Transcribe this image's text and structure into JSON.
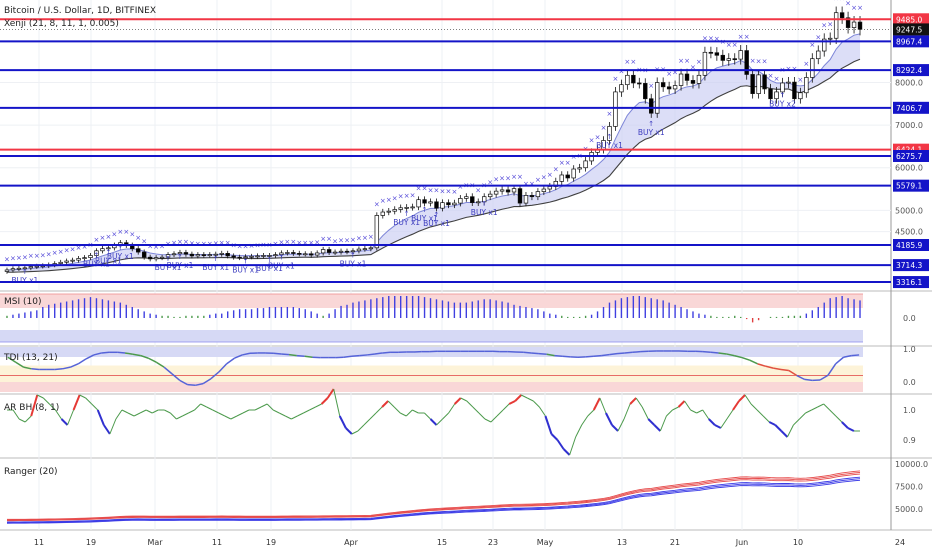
{
  "header": {
    "symbol_title": "Bitcoin / U.S. Dollar, 1D, BITFINEX",
    "indicator_label": "Xenji (21, 8, 11, 1, 0.005)"
  },
  "colors": {
    "red_line": "#f23645",
    "blue_line": "#1414c8",
    "candle_up": "#ffffff",
    "candle_down": "#000000",
    "x_marker": "#4a3fd6",
    "buy_label": "#3d3dbf",
    "band_fill": "#c9cdf3",
    "band_line": "#404040",
    "msi_bar": "#3f3fe0",
    "tdi_line": "#5563d8",
    "tdi_green": "#4c9a4c",
    "tdi_red": "#e05040",
    "ar_line": "#4c9a4c",
    "ar_red": "#e53935",
    "ar_blue": "#3030d0",
    "ranger_red": "#e64a4a",
    "ranger_blue": "#3a3ae6"
  },
  "chart_data": [
    {
      "type": "candlestick",
      "title": "Bitcoin / U.S. Dollar, 1D, BITFINEX",
      "overlay": "Xenji (21, 8, 11, 1, 0.005)",
      "x_ticks": [
        "11",
        "19",
        "Mar",
        "11",
        "19",
        "Apr",
        "15",
        "23",
        "May",
        "13",
        "21",
        "Jun",
        "10",
        "24"
      ],
      "y_ticks": [
        4500,
        5000,
        6000,
        7000,
        8000
      ],
      "y_tick_labels": [
        "4500.0",
        "5000.0",
        "6000.0",
        "7000.0",
        "8000.0"
      ],
      "ylim": [
        3200,
        9750
      ],
      "red_levels": [
        9485.0,
        6424.1
      ],
      "blue_levels": [
        8967.4,
        8292.4,
        7406.7,
        6275.7,
        5579.1,
        4185.9,
        3714.3,
        3316.1
      ],
      "level_labels": [
        "9485.0",
        "8967.4",
        "8292.4",
        "7406.7",
        "6424.1",
        "6275.7",
        "5579.1",
        "4185.9",
        "3714.3",
        "3316.1"
      ],
      "last_price_label": "9247.5",
      "last_price": 9247.5,
      "close_series": [
        3600,
        3630,
        3640,
        3650,
        3680,
        3690,
        3700,
        3720,
        3750,
        3780,
        3810,
        3830,
        3870,
        3890,
        3940,
        4050,
        4100,
        4120,
        4180,
        4240,
        4180,
        4100,
        4020,
        3900,
        3860,
        3890,
        3900,
        3960,
        3980,
        4010,
        3970,
        3930,
        3960,
        3950,
        3960,
        3970,
        3990,
        3930,
        3900,
        3890,
        3910,
        3920,
        3930,
        3940,
        3940,
        3960,
        4000,
        4010,
        3990,
        3980,
        3980,
        3950,
        4000,
        4080,
        4010,
        4020,
        4040,
        4030,
        4050,
        4090,
        4100,
        4120,
        4880,
        4960,
        4980,
        5020,
        5060,
        5070,
        5080,
        5250,
        5170,
        5200,
        5050,
        5180,
        5130,
        5170,
        5280,
        5320,
        5180,
        5200,
        5320,
        5380,
        5450,
        5480,
        5430,
        5510,
        5170,
        5350,
        5320,
        5440,
        5500,
        5560,
        5680,
        5830,
        5760,
        5970,
        6000,
        6160,
        6360,
        6430,
        6640,
        6970,
        7780,
        7950,
        8170,
        7990,
        7980,
        7620,
        7280,
        8000,
        7900,
        7850,
        7930,
        8200,
        8050,
        7980,
        8170,
        8710,
        8700,
        8640,
        8520,
        8560,
        8550,
        8750,
        8190,
        7740,
        8180,
        7850,
        7620,
        7780,
        7990,
        8010,
        7620,
        7760,
        8120,
        8560,
        8740,
        9020,
        9040,
        9640,
        9520,
        9290,
        9420,
        9247.5
      ],
      "buy_signals": [
        "BUY x1",
        "BUY x1",
        "BUY x1",
        "BUY x1",
        "BUY x1",
        "BUY x1",
        "BUY x1",
        "BUY x1",
        "BUY x1",
        "BUY x1",
        "BUY x1",
        "BUY x1",
        "BUY x1",
        "BUY x1",
        "BUY x1",
        "BUY x1",
        "BUY x1",
        "BUY x2"
      ]
    },
    {
      "type": "bar",
      "title": "MSI (10)",
      "y_ticks": [
        0.0
      ],
      "y_tick_labels": [
        "0.0"
      ],
      "values": [
        0.1,
        0.15,
        0.2,
        0.25,
        0.3,
        0.35,
        0.5,
        0.6,
        0.65,
        0.7,
        0.75,
        0.8,
        0.85,
        0.9,
        0.95,
        0.9,
        0.85,
        0.8,
        0.75,
        0.7,
        0.6,
        0.5,
        0.4,
        0.3,
        0.2,
        0.15,
        0.1,
        0.1,
        0.05,
        0.05,
        0.1,
        0.1,
        0.1,
        0.1,
        0.15,
        0.2,
        0.2,
        0.3,
        0.35,
        0.4,
        0.4,
        0.4,
        0.45,
        0.45,
        0.5,
        0.5,
        0.5,
        0.5,
        0.5,
        0.45,
        0.4,
        0.3,
        0.2,
        0.1,
        0.2,
        0.4,
        0.55,
        0.6,
        0.7,
        0.75,
        0.8,
        0.85,
        0.9,
        0.95,
        1.0,
        1.0,
        1.0,
        1.0,
        1.0,
        1.0,
        0.95,
        0.9,
        0.85,
        0.8,
        0.75,
        0.7,
        0.7,
        0.7,
        0.75,
        0.8,
        0.85,
        0.85,
        0.8,
        0.75,
        0.7,
        0.6,
        0.55,
        0.5,
        0.45,
        0.4,
        0.3,
        0.2,
        0.15,
        0.1,
        0.05,
        0.05,
        0.05,
        0.1,
        0.15,
        0.3,
        0.5,
        0.7,
        0.8,
        0.9,
        0.95,
        1.0,
        1.0,
        0.95,
        0.9,
        0.85,
        0.8,
        0.7,
        0.6,
        0.5,
        0.4,
        0.3,
        0.2,
        0.15,
        0.1,
        0.05,
        0.05,
        0.05,
        0.1,
        0.05,
        -0.05,
        -0.2,
        -0.1,
        0.0,
        0.05,
        0.05,
        0.05,
        0.1,
        0.1,
        0.1,
        0.2,
        0.35,
        0.5,
        0.7,
        0.9,
        0.95,
        1.0,
        0.9,
        0.85,
        0.8
      ]
    },
    {
      "type": "line",
      "title": "TDI (13, 21)",
      "y_ticks": [
        0.0,
        1.0
      ],
      "y_tick_labels": [
        "0.0",
        "1.0"
      ],
      "values": [
        0.75,
        0.6,
        0.45,
        0.4,
        0.38,
        0.38,
        0.38,
        0.4,
        0.45,
        0.55,
        0.7,
        0.82,
        0.88,
        0.9,
        0.9,
        0.88,
        0.84,
        0.8,
        0.72,
        0.6,
        0.45,
        0.25,
        0.05,
        -0.08,
        -0.1,
        -0.05,
        0.1,
        0.3,
        0.55,
        0.72,
        0.82,
        0.87,
        0.88,
        0.88,
        0.87,
        0.85,
        0.83,
        0.8,
        0.78,
        0.75,
        0.74,
        0.74,
        0.74,
        0.75,
        0.78,
        0.8,
        0.82,
        0.85,
        0.88,
        0.9,
        0.9,
        0.91,
        0.91,
        0.92,
        0.92,
        0.93,
        0.93,
        0.93,
        0.93,
        0.93,
        0.93,
        0.93,
        0.93,
        0.92,
        0.92,
        0.91,
        0.9,
        0.88,
        0.86,
        0.84,
        0.8,
        0.78,
        0.76,
        0.75,
        0.76,
        0.78,
        0.8,
        0.83,
        0.86,
        0.88,
        0.9,
        0.92,
        0.93,
        0.94,
        0.94,
        0.94,
        0.94,
        0.93,
        0.93,
        0.92,
        0.9,
        0.88,
        0.85,
        0.8,
        0.74,
        0.66,
        0.55,
        0.48,
        0.42,
        0.38,
        0.35,
        0.2,
        0.08,
        0.05,
        0.06,
        0.2,
        0.55,
        0.75,
        0.8,
        0.82
      ]
    },
    {
      "type": "line",
      "title": "AR BH (8, 1)",
      "y_ticks": [
        0.9,
        1.0
      ],
      "y_tick_labels": [
        "0.9",
        "1.0"
      ],
      "values": [
        1.0,
        1.0,
        0.97,
        0.96,
        0.98,
        1.05,
        1.04,
        1.02,
        1.0,
        0.97,
        0.95,
        1.0,
        1.05,
        1.04,
        1.02,
        1.0,
        0.95,
        0.92,
        0.97,
        1.0,
        0.99,
        0.98,
        0.99,
        1.0,
        0.99,
        1.0,
        1.0,
        0.99,
        0.97,
        0.98,
        0.99,
        1.0,
        1.02,
        1.01,
        1.0,
        0.99,
        0.98,
        0.97,
        0.98,
        0.99,
        1.0,
        1.0,
        1.01,
        1.02,
        1.0,
        0.99,
        0.98,
        0.97,
        0.98,
        0.99,
        1.0,
        1.01,
        1.02,
        1.04,
        1.07,
        0.98,
        0.94,
        0.92,
        0.93,
        0.95,
        0.97,
        0.99,
        1.01,
        1.03,
        1.01,
        0.99,
        0.98,
        1.0,
        0.99,
        0.99,
        0.97,
        0.95,
        0.97,
        0.99,
        1.02,
        1.04,
        1.03,
        1.01,
        0.99,
        0.97,
        0.96,
        0.98,
        1.0,
        1.02,
        1.03,
        1.05,
        1.04,
        1.03,
        1.01,
        0.98,
        0.92,
        0.9,
        0.87,
        0.85,
        0.91,
        0.95,
        0.98,
        1.0,
        1.04,
        0.99,
        0.95,
        0.93,
        0.97,
        1.02,
        1.04,
        1.01,
        0.97,
        0.95,
        0.93,
        0.98,
        1.0,
        1.01,
        1.03,
        1.0,
        0.99,
        1.0,
        0.97,
        0.95,
        0.94,
        0.97,
        1.0,
        1.03,
        1.05,
        1.02,
        1.0,
        0.98,
        0.96,
        0.95,
        0.93,
        0.91,
        0.95,
        0.97,
        0.99,
        1.0,
        1.01,
        1.02,
        1.0,
        0.98,
        0.96,
        0.94,
        0.93,
        0.93
      ]
    },
    {
      "type": "line",
      "title": "Ranger (20)",
      "y_ticks": [
        5000,
        7500,
        10000
      ],
      "y_tick_labels": [
        "5000.0",
        "7500.0",
        "10000.0"
      ]
    }
  ]
}
